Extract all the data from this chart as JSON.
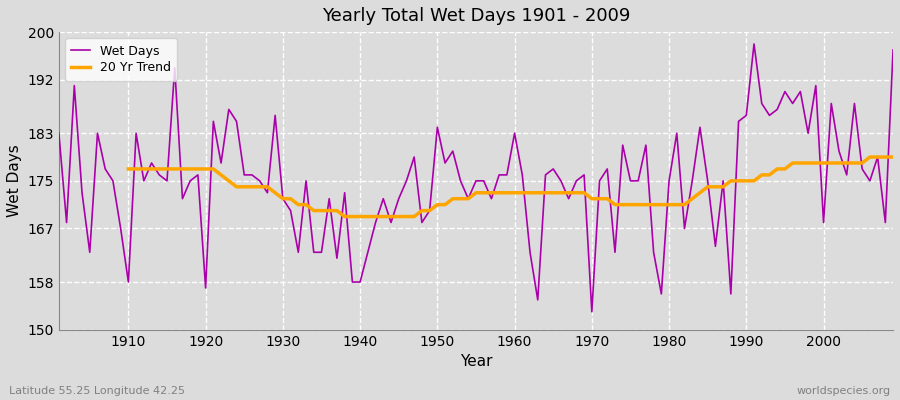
{
  "title": "Yearly Total Wet Days 1901 - 2009",
  "xlabel": "Year",
  "ylabel": "Wet Days",
  "subtitle_left": "Latitude 55.25 Longitude 42.25",
  "subtitle_right": "worldspecies.org",
  "ylim": [
    150,
    200
  ],
  "xlim": [
    1901,
    2009
  ],
  "yticks": [
    150,
    158,
    167,
    175,
    183,
    192,
    200
  ],
  "xticks": [
    1910,
    1920,
    1930,
    1940,
    1950,
    1960,
    1970,
    1980,
    1990,
    2000
  ],
  "line_color": "#AA00AA",
  "trend_color": "#FFA500",
  "plot_bg_color": "#DCDCDC",
  "fig_bg_color": "#DCDCDC",
  "grid_color": "#FFFFFF",
  "years": [
    1901,
    1902,
    1903,
    1904,
    1905,
    1906,
    1907,
    1908,
    1909,
    1910,
    1911,
    1912,
    1913,
    1914,
    1915,
    1916,
    1917,
    1918,
    1919,
    1920,
    1921,
    1922,
    1923,
    1924,
    1925,
    1926,
    1927,
    1928,
    1929,
    1930,
    1931,
    1932,
    1933,
    1934,
    1935,
    1936,
    1937,
    1938,
    1939,
    1940,
    1941,
    1942,
    1943,
    1944,
    1945,
    1946,
    1947,
    1948,
    1949,
    1950,
    1951,
    1952,
    1953,
    1954,
    1955,
    1956,
    1957,
    1958,
    1959,
    1960,
    1961,
    1962,
    1963,
    1964,
    1965,
    1966,
    1967,
    1968,
    1969,
    1970,
    1971,
    1972,
    1973,
    1974,
    1975,
    1976,
    1977,
    1978,
    1979,
    1980,
    1981,
    1982,
    1983,
    1984,
    1985,
    1986,
    1987,
    1988,
    1989,
    1990,
    1991,
    1992,
    1993,
    1994,
    1995,
    1996,
    1997,
    1998,
    1999,
    2000,
    2001,
    2002,
    2003,
    2004,
    2005,
    2006,
    2007,
    2008,
    2009
  ],
  "wet_days": [
    183,
    168,
    191,
    173,
    163,
    183,
    177,
    175,
    167,
    158,
    183,
    175,
    178,
    176,
    175,
    194,
    172,
    175,
    176,
    157,
    185,
    178,
    187,
    185,
    176,
    176,
    175,
    173,
    186,
    172,
    170,
    163,
    175,
    163,
    163,
    172,
    162,
    173,
    158,
    158,
    163,
    168,
    172,
    168,
    172,
    175,
    179,
    168,
    170,
    184,
    178,
    180,
    175,
    172,
    175,
    175,
    172,
    176,
    176,
    183,
    176,
    163,
    155,
    176,
    177,
    175,
    172,
    175,
    176,
    153,
    175,
    177,
    163,
    181,
    175,
    175,
    181,
    163,
    156,
    175,
    183,
    167,
    175,
    184,
    175,
    164,
    175,
    156,
    185,
    186,
    198,
    188,
    186,
    187,
    190,
    188,
    190,
    183,
    191,
    168,
    188,
    180,
    176,
    188,
    177,
    175,
    179,
    168,
    197
  ],
  "trend_years": [
    1910,
    1911,
    1912,
    1913,
    1914,
    1915,
    1916,
    1917,
    1918,
    1919,
    1920,
    1921,
    1922,
    1923,
    1924,
    1925,
    1926,
    1927,
    1928,
    1929,
    1930,
    1931,
    1932,
    1933,
    1934,
    1935,
    1936,
    1937,
    1938,
    1939,
    1940,
    1941,
    1942,
    1943,
    1944,
    1945,
    1946,
    1947,
    1948,
    1949,
    1950,
    1951,
    1952,
    1953,
    1954,
    1955,
    1956,
    1957,
    1958,
    1959,
    1960,
    1961,
    1962,
    1963,
    1964,
    1965,
    1966,
    1967,
    1968,
    1969,
    1970,
    1971,
    1972,
    1973,
    1974,
    1975,
    1976,
    1977,
    1978,
    1979,
    1980,
    1981,
    1982,
    1983,
    1984,
    1985,
    1986,
    1987,
    1988,
    1989,
    1990,
    1991,
    1992,
    1993,
    1994,
    1995,
    1996,
    1997,
    1998,
    1999,
    2000,
    2001,
    2002,
    2003,
    2004,
    2005,
    2006,
    2007,
    2008,
    2009
  ],
  "trend_values": [
    177,
    177,
    177,
    177,
    177,
    177,
    177,
    177,
    177,
    177,
    177,
    177,
    176,
    175,
    174,
    174,
    174,
    174,
    174,
    173,
    172,
    172,
    171,
    171,
    170,
    170,
    170,
    170,
    169,
    169,
    169,
    169,
    169,
    169,
    169,
    169,
    169,
    169,
    170,
    170,
    171,
    171,
    172,
    172,
    172,
    173,
    173,
    173,
    173,
    173,
    173,
    173,
    173,
    173,
    173,
    173,
    173,
    173,
    173,
    173,
    172,
    172,
    172,
    171,
    171,
    171,
    171,
    171,
    171,
    171,
    171,
    171,
    171,
    172,
    173,
    174,
    174,
    174,
    175,
    175,
    175,
    175,
    176,
    176,
    177,
    177,
    178,
    178,
    178,
    178,
    178,
    178,
    178,
    178,
    178,
    178,
    179,
    179,
    179,
    179
  ]
}
